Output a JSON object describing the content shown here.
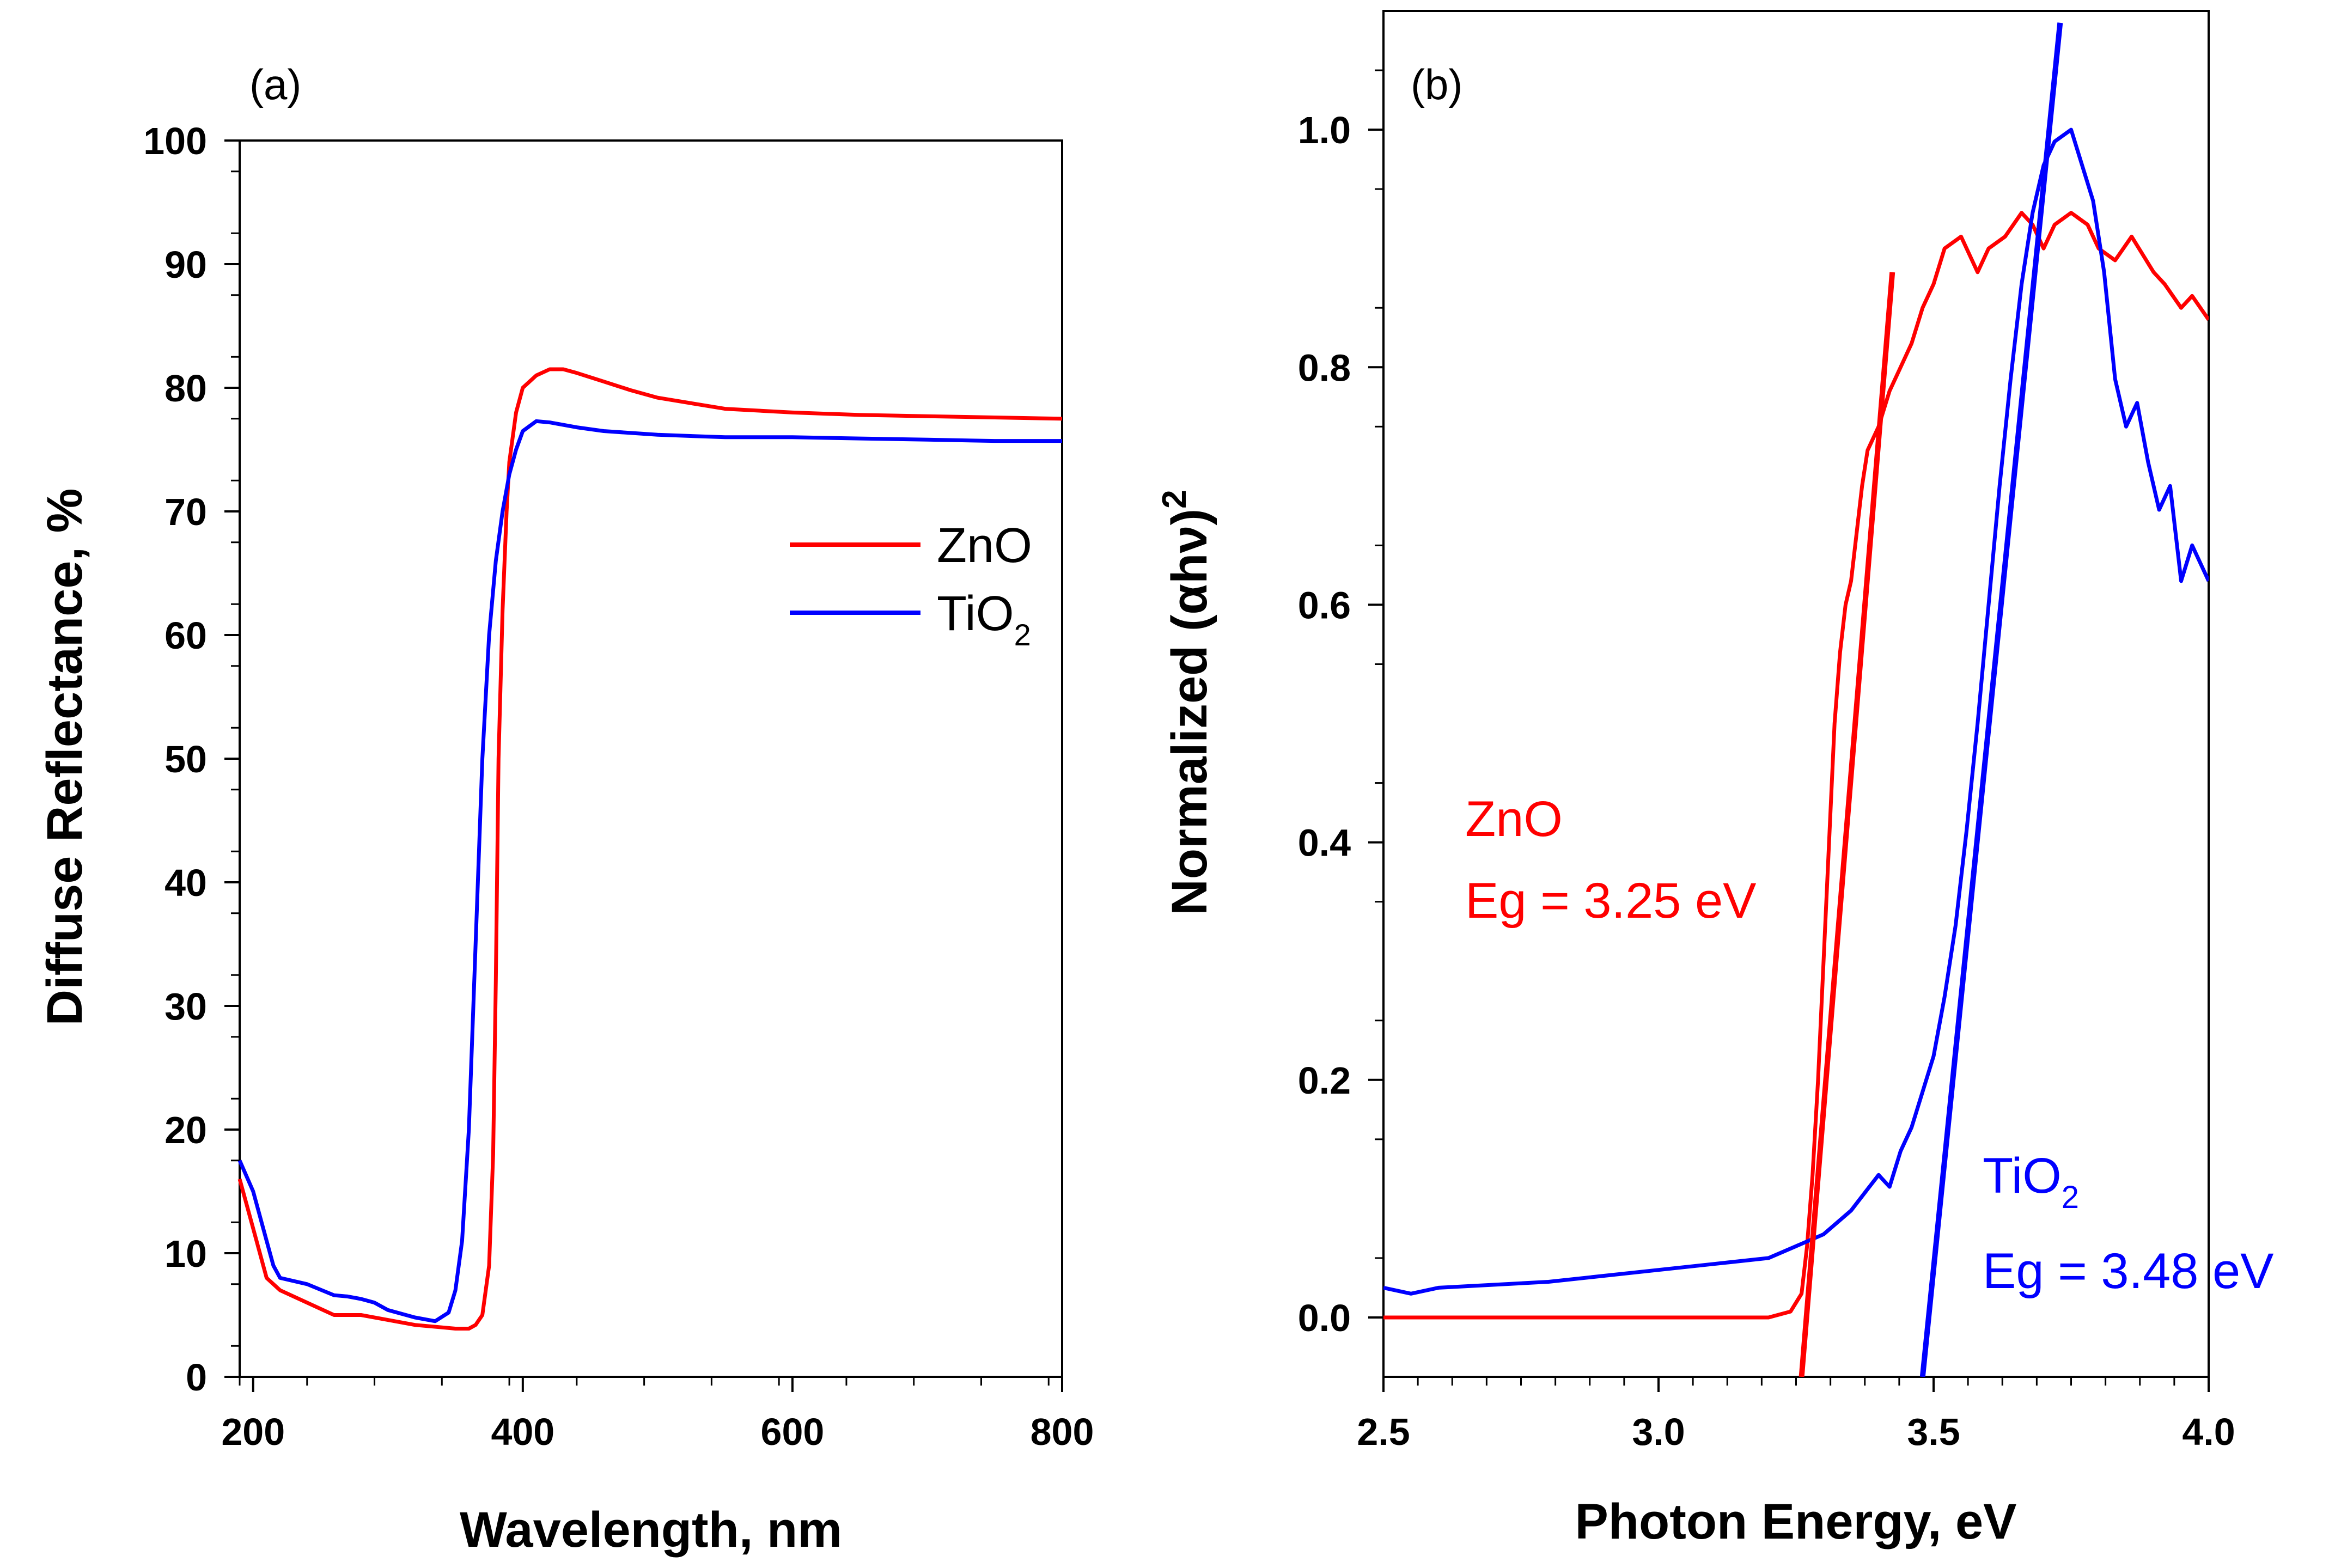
{
  "chart_data": [
    {
      "panel": "(a)",
      "type": "line",
      "xlabel": "Wavelength, nm",
      "ylabel": "Diffuse Reflectance, %",
      "xlim": [
        190,
        800
      ],
      "ylim": [
        0,
        100
      ],
      "xticks": [
        200,
        400,
        600,
        800
      ],
      "yticks": [
        0,
        10,
        20,
        30,
        40,
        50,
        60,
        70,
        80,
        90,
        100
      ],
      "grid": false,
      "legend_position": "center-right",
      "series": [
        {
          "name": "ZnO",
          "legend_main": "ZnO",
          "legend_sub": "",
          "color": "#ff0000",
          "x": [
            190,
            200,
            210,
            220,
            240,
            260,
            280,
            300,
            320,
            340,
            350,
            360,
            365,
            370,
            375,
            378,
            380,
            382,
            385,
            388,
            390,
            395,
            400,
            410,
            420,
            430,
            440,
            460,
            480,
            500,
            550,
            600,
            650,
            700,
            750,
            800
          ],
          "y": [
            16,
            12,
            8,
            7,
            6,
            5,
            5,
            4.6,
            4.2,
            4,
            3.9,
            3.9,
            4.2,
            5,
            9,
            18,
            32,
            50,
            62,
            70,
            74,
            78,
            80,
            81,
            81.5,
            81.5,
            81.2,
            80.5,
            79.8,
            79.2,
            78.3,
            78,
            77.8,
            77.7,
            77.6,
            77.5
          ]
        },
        {
          "name": "TiO2",
          "legend_main": "TiO",
          "legend_sub": "2",
          "color": "#0000ff",
          "x": [
            190,
            200,
            210,
            215,
            220,
            240,
            260,
            270,
            280,
            290,
            300,
            320,
            335,
            345,
            350,
            355,
            360,
            365,
            370,
            375,
            380,
            385,
            390,
            395,
            400,
            410,
            420,
            440,
            460,
            500,
            550,
            600,
            650,
            700,
            750,
            800
          ],
          "y": [
            17.5,
            15,
            11,
            9,
            8,
            7.5,
            6.6,
            6.5,
            6.3,
            6,
            5.4,
            4.8,
            4.5,
            5.2,
            7,
            11,
            20,
            35,
            50,
            60,
            66,
            70,
            73,
            75,
            76.5,
            77.3,
            77.2,
            76.8,
            76.5,
            76.2,
            76,
            76,
            75.9,
            75.8,
            75.7,
            75.7
          ]
        }
      ]
    },
    {
      "panel": "(b)",
      "type": "line",
      "xlabel": "Photon Energy, eV",
      "ylabel_main": "Normalized (αhν)",
      "ylabel_sup": "2",
      "xlim": [
        2.5,
        4.0
      ],
      "ylim": [
        -0.05,
        1.1
      ],
      "xticks": [
        "2.5",
        "3.0",
        "3.5",
        "4.0"
      ],
      "yticks": [
        "0.0",
        "0.2",
        "0.4",
        "0.6",
        "0.8",
        "1.0"
      ],
      "grid": false,
      "series": [
        {
          "name": "ZnO",
          "color": "#ff0000",
          "x": [
            2.5,
            3.0,
            3.2,
            3.24,
            3.26,
            3.27,
            3.28,
            3.29,
            3.3,
            3.31,
            3.32,
            3.33,
            3.34,
            3.35,
            3.36,
            3.37,
            3.38,
            3.39,
            3.4,
            3.42,
            3.44,
            3.46,
            3.48,
            3.5,
            3.52,
            3.55,
            3.58,
            3.6,
            3.63,
            3.66,
            3.68,
            3.7,
            3.72,
            3.75,
            3.78,
            3.8,
            3.83,
            3.86,
            3.9,
            3.92,
            3.95,
            3.97,
            4.0
          ],
          "y": [
            0.0,
            0.0,
            0.0,
            0.005,
            0.02,
            0.06,
            0.12,
            0.2,
            0.3,
            0.4,
            0.5,
            0.56,
            0.6,
            0.62,
            0.66,
            0.7,
            0.73,
            0.74,
            0.75,
            0.78,
            0.8,
            0.82,
            0.85,
            0.87,
            0.9,
            0.91,
            0.88,
            0.9,
            0.91,
            0.93,
            0.92,
            0.9,
            0.92,
            0.93,
            0.92,
            0.9,
            0.89,
            0.91,
            0.88,
            0.87,
            0.85,
            0.86,
            0.84
          ]
        },
        {
          "name": "TiO2",
          "color": "#0000ff",
          "x": [
            2.5,
            2.55,
            2.6,
            2.8,
            3.0,
            3.1,
            3.2,
            3.25,
            3.3,
            3.35,
            3.4,
            3.42,
            3.44,
            3.46,
            3.48,
            3.5,
            3.52,
            3.54,
            3.56,
            3.58,
            3.6,
            3.62,
            3.64,
            3.66,
            3.68,
            3.7,
            3.72,
            3.75,
            3.77,
            3.79,
            3.81,
            3.83,
            3.85,
            3.87,
            3.89,
            3.91,
            3.93,
            3.95,
            3.97,
            4.0
          ],
          "y": [
            0.025,
            0.02,
            0.025,
            0.03,
            0.04,
            0.045,
            0.05,
            0.06,
            0.07,
            0.09,
            0.12,
            0.11,
            0.14,
            0.16,
            0.19,
            0.22,
            0.27,
            0.33,
            0.41,
            0.5,
            0.6,
            0.7,
            0.79,
            0.87,
            0.93,
            0.97,
            0.99,
            1.0,
            0.97,
            0.94,
            0.88,
            0.79,
            0.75,
            0.77,
            0.72,
            0.68,
            0.7,
            0.62,
            0.65,
            0.62
          ]
        }
      ],
      "fits": [
        {
          "name": "ZnO-fit",
          "color": "#ff0000",
          "x": [
            3.26,
            3.425
          ],
          "y": [
            -0.05,
            0.88
          ]
        },
        {
          "name": "TiO2-fit",
          "color": "#0000ff",
          "x": [
            3.48,
            3.73
          ],
          "y": [
            -0.05,
            1.09
          ]
        }
      ],
      "annotations": [
        {
          "name": "zno",
          "color": "#ff0000",
          "label": "ZnO",
          "eg": "Eg = 3.25 eV",
          "label_sub": ""
        },
        {
          "name": "tio2",
          "color": "#0000ff",
          "label": "TiO",
          "label_sub": "2",
          "eg": "Eg = 3.48 eV"
        }
      ]
    }
  ]
}
